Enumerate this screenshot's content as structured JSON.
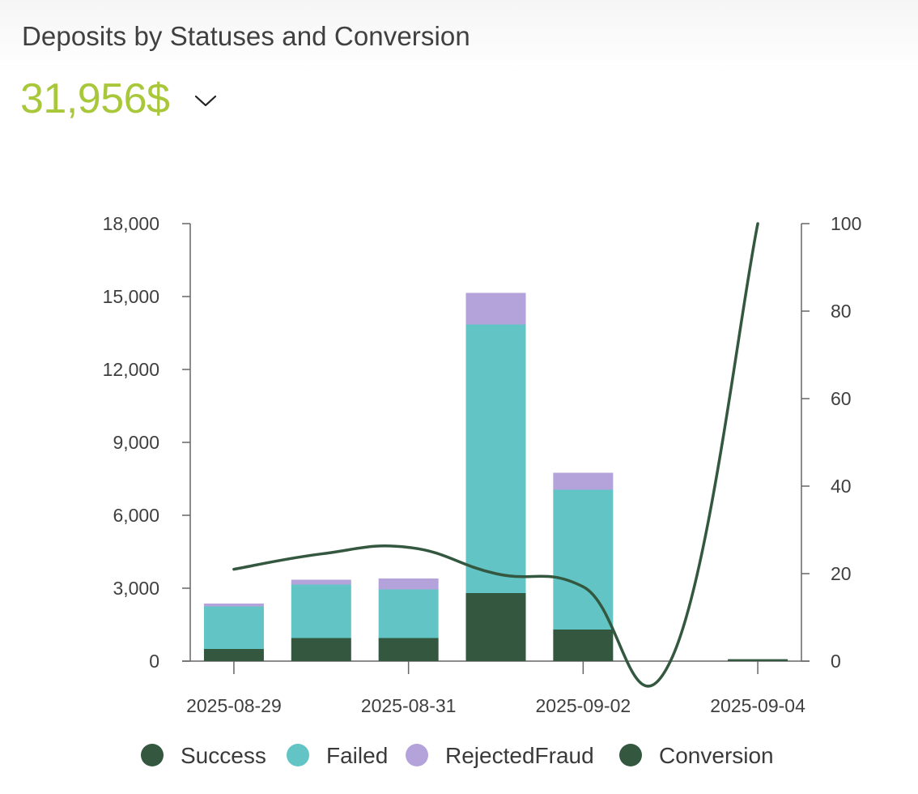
{
  "header": {
    "title": "Deposits by Statuses and Conversion",
    "total": "31,956$",
    "dropdown_icon": "chevron-down-icon"
  },
  "colors": {
    "success": "#33573f",
    "failed": "#63c4c6",
    "rejected_fraud": "#b4a2da",
    "conversion": "#33573f",
    "total": "#a9c73a",
    "axis": "#666666"
  },
  "chart_data": {
    "type": "bar",
    "categories": [
      "2025-08-29",
      "2025-08-30",
      "2025-08-31",
      "2025-09-01",
      "2025-09-02",
      "2025-09-03",
      "2025-09-04"
    ],
    "x_tick_labels": [
      "2025-08-29",
      "2025-08-31",
      "2025-09-02",
      "2025-09-04"
    ],
    "series": [
      {
        "name": "Success",
        "type": "bar",
        "stack": "deposits",
        "values": [
          500,
          950,
          950,
          2800,
          1300,
          0,
          80
        ]
      },
      {
        "name": "Failed",
        "type": "bar",
        "stack": "deposits",
        "values": [
          1750,
          2200,
          2000,
          11050,
          5750,
          0,
          0
        ]
      },
      {
        "name": "RejectedFraud",
        "type": "bar",
        "stack": "deposits",
        "values": [
          120,
          200,
          450,
          1300,
          700,
          0,
          0
        ]
      },
      {
        "name": "Conversion",
        "type": "line",
        "axis": "right",
        "smooth": true,
        "values": [
          21,
          24.5,
          26,
          20,
          17,
          0,
          100
        ]
      }
    ],
    "y_left": {
      "ylim": [
        0,
        18000
      ],
      "ticks": [
        "0",
        "3,000",
        "6,000",
        "9,000",
        "12,000",
        "15,000",
        "18,000"
      ]
    },
    "y_right": {
      "ylim": [
        0,
        100
      ],
      "ticks": [
        "0",
        "20",
        "40",
        "60",
        "80",
        "100"
      ]
    },
    "legend": {
      "placement": "bottom",
      "items": [
        "Success",
        "Failed",
        "RejectedFraud",
        "Conversion"
      ]
    },
    "grid": false
  }
}
